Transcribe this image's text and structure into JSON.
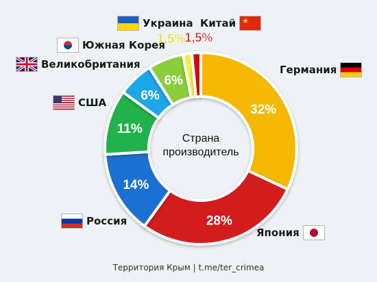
{
  "chart_data": {
    "type": "pie",
    "title": "",
    "center_label": [
      "Страна",
      "производитель"
    ],
    "slices": [
      {
        "name": "Германия",
        "value": 32,
        "label": "32%",
        "color": "#f5b800",
        "flag": "de-flag-icon"
      },
      {
        "name": "Япония",
        "value": 28,
        "label": "28%",
        "color": "#d31f1f",
        "flag": "jp-flag-icon"
      },
      {
        "name": "Россия",
        "value": 14,
        "label": "14%",
        "color": "#1f6fd1",
        "flag": "ru-flag-icon"
      },
      {
        "name": "США",
        "value": 11,
        "label": "11%",
        "color": "#21b24b",
        "flag": "us-flag-icon"
      },
      {
        "name": "Великобритания",
        "value": 6,
        "label": "6%",
        "color": "#1aa7e6",
        "flag": "gb-flag-icon"
      },
      {
        "name": "Южная Корея",
        "value": 6,
        "label": "6%",
        "color": "#8ccd3a",
        "flag": "kr-flag-icon"
      },
      {
        "name": "Украина",
        "value": 1.5,
        "label": "1,5%",
        "color": "#f0ef4a",
        "flag": "ua-flag-icon"
      },
      {
        "name": "Китай",
        "value": 1.5,
        "label": "1,5%",
        "color": "#cc1111",
        "flag": "cn-flag-icon"
      }
    ]
  },
  "footer": "Территория Крым | t.me/ter_crimea",
  "colors": {
    "background": "#eef1f5",
    "label_small_ua": "#e6d800",
    "label_small_cn": "#d11a1a"
  }
}
